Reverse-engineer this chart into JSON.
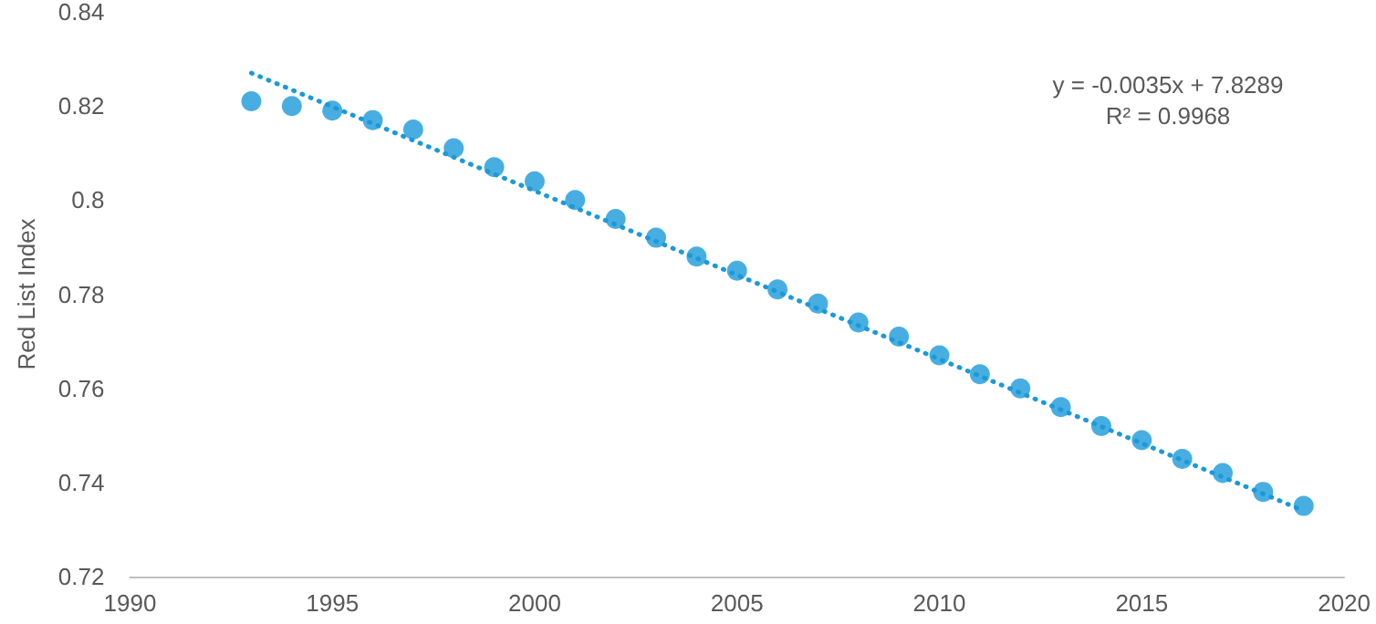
{
  "chart_data": {
    "type": "scatter",
    "ylabel": "Red List Index",
    "x": [
      1993,
      1994,
      1995,
      1996,
      1997,
      1998,
      1999,
      2000,
      2001,
      2002,
      2003,
      2004,
      2005,
      2006,
      2007,
      2008,
      2009,
      2010,
      2011,
      2012,
      2013,
      2014,
      2015,
      2016,
      2017,
      2018,
      2019
    ],
    "series": [
      {
        "color": "#1a9ad9",
        "marker": "circle",
        "values": [
          0.821,
          0.82,
          0.819,
          0.817,
          0.815,
          0.811,
          0.807,
          0.804,
          0.8,
          0.796,
          0.792,
          0.788,
          0.785,
          0.781,
          0.778,
          0.774,
          0.771,
          0.767,
          0.763,
          0.76,
          0.756,
          0.752,
          0.749,
          0.745,
          0.742,
          0.738,
          0.735
        ]
      },
      {
        "type": "line",
        "color": "#1a9ad9",
        "line_style": "dotted",
        "marker": "none",
        "x": [
          1993,
          2019
        ],
        "values": [
          0.827,
          0.734
        ]
      }
    ],
    "xlim": [
      1990,
      2020
    ],
    "xticks": [
      1990,
      1995,
      2000,
      2005,
      2010,
      2015,
      2020
    ],
    "ylim": [
      0.72,
      0.84
    ],
    "yticks": [
      0.72,
      0.74,
      0.76,
      0.78,
      0.8,
      0.82,
      0.84
    ],
    "grid": false,
    "annotations": [
      "y = -0.0035x + 7.8289",
      "R² = 0.9968"
    ]
  }
}
